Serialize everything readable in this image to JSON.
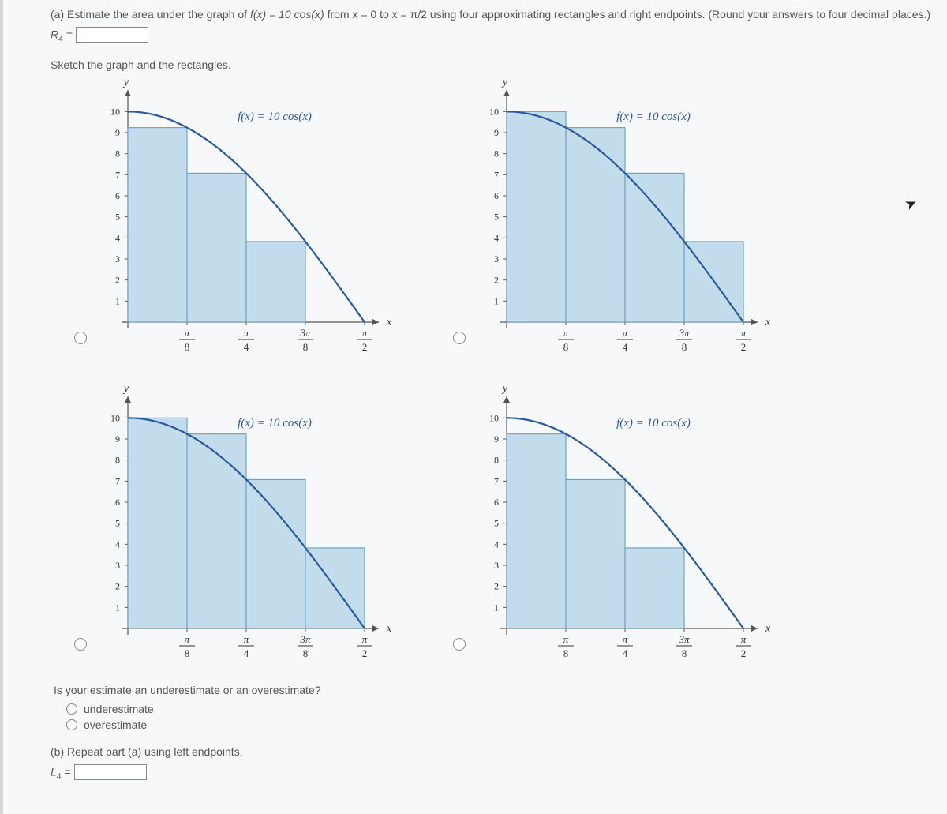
{
  "question_a": {
    "prefix": "(a) Estimate the area under the graph of ",
    "func": "f(x) = 10 cos(x)",
    "mid": " from x = 0 to x = π/2 using four approximating rectangles and right endpoints. (Round your answers to four decimal places.)",
    "r4_label": "R",
    "r4_sub": "4",
    "r4_eq": " ="
  },
  "sketch_label": "Sketch the graph and the rectangles.",
  "chart_shared": {
    "y_label": "y",
    "x_label": "x",
    "func_label": "f(x) = 10 cos(x)",
    "y_ticks": [
      1,
      2,
      3,
      4,
      5,
      6,
      7,
      8,
      9,
      10
    ],
    "x_tick_labels": [
      "π/8",
      "π/4",
      "3π/8",
      "π/2"
    ],
    "bar_fill": "#c3dceb",
    "bar_stroke": "#6fa4c6",
    "curve_stroke": "#2a5a9c",
    "axis_stroke": "#555",
    "background": "#ffffff"
  },
  "charts": [
    {
      "heights": [
        9.239,
        7.071,
        3.827,
        0.0
      ],
      "x_offset": 1
    },
    {
      "heights": [
        10.0,
        9.239,
        7.071,
        3.827
      ],
      "x_offset": 0
    },
    {
      "heights": [
        10.0,
        9.239,
        7.071,
        3.827
      ],
      "x_offset": 1
    },
    {
      "heights": [
        9.239,
        7.071,
        3.827,
        0.0
      ],
      "x_offset": 0
    }
  ],
  "estimate_q": "Is your estimate an underestimate or an overestimate?",
  "opt_under": "underestimate",
  "opt_over": "overestimate",
  "question_b": {
    "text": "(b) Repeat part (a) using left endpoints.",
    "l4_label": "L",
    "l4_sub": "4",
    "l4_eq": " ="
  }
}
